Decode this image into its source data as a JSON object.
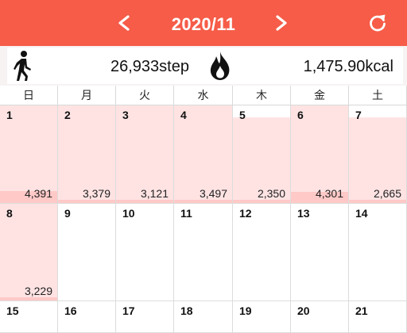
{
  "header": {
    "prev_label": "<",
    "next_label": ">",
    "month": "2020/11",
    "refresh_icon": "refresh-icon",
    "bg_color": "#f65c48"
  },
  "summary": {
    "steps": "26,933step",
    "calories": "1,475.90kcal",
    "walker_icon": "walker-icon",
    "flame_icon": "flame-icon"
  },
  "weekdays": [
    "日",
    "月",
    "火",
    "水",
    "木",
    "金",
    "土"
  ],
  "colors": {
    "day_bg": "#ffe3e3",
    "step_bar": "#ffc9c7"
  },
  "weeks": [
    [
      {
        "day": "1",
        "steps": "4,391",
        "steps_value": 4391,
        "has_data": true
      },
      {
        "day": "2",
        "steps": "3,379",
        "steps_value": 3379,
        "has_data": true
      },
      {
        "day": "3",
        "steps": "3,121",
        "steps_value": 3121,
        "has_data": true
      },
      {
        "day": "4",
        "steps": "3,497",
        "steps_value": 3497,
        "has_data": true
      },
      {
        "day": "5",
        "steps": "2,350",
        "steps_value": 2350,
        "has_data": true
      },
      {
        "day": "6",
        "steps": "4,301",
        "steps_value": 4301,
        "has_data": true
      },
      {
        "day": "7",
        "steps": "2,665",
        "steps_value": 2665,
        "has_data": true
      }
    ],
    [
      {
        "day": "8",
        "steps": "3,229",
        "steps_value": 3229,
        "has_data": true
      },
      {
        "day": "9",
        "steps": "",
        "steps_value": 0,
        "has_data": false
      },
      {
        "day": "10",
        "steps": "",
        "steps_value": 0,
        "has_data": false
      },
      {
        "day": "11",
        "steps": "",
        "steps_value": 0,
        "has_data": false
      },
      {
        "day": "12",
        "steps": "",
        "steps_value": 0,
        "has_data": false
      },
      {
        "day": "13",
        "steps": "",
        "steps_value": 0,
        "has_data": false
      },
      {
        "day": "14",
        "steps": "",
        "steps_value": 0,
        "has_data": false
      }
    ],
    [
      {
        "day": "15",
        "steps": "",
        "steps_value": 0,
        "has_data": false
      },
      {
        "day": "16",
        "steps": "",
        "steps_value": 0,
        "has_data": false
      },
      {
        "day": "17",
        "steps": "",
        "steps_value": 0,
        "has_data": false
      },
      {
        "day": "18",
        "steps": "",
        "steps_value": 0,
        "has_data": false
      },
      {
        "day": "19",
        "steps": "",
        "steps_value": 0,
        "has_data": false
      },
      {
        "day": "20",
        "steps": "",
        "steps_value": 0,
        "has_data": false
      },
      {
        "day": "21",
        "steps": "",
        "steps_value": 0,
        "has_data": false
      }
    ]
  ]
}
